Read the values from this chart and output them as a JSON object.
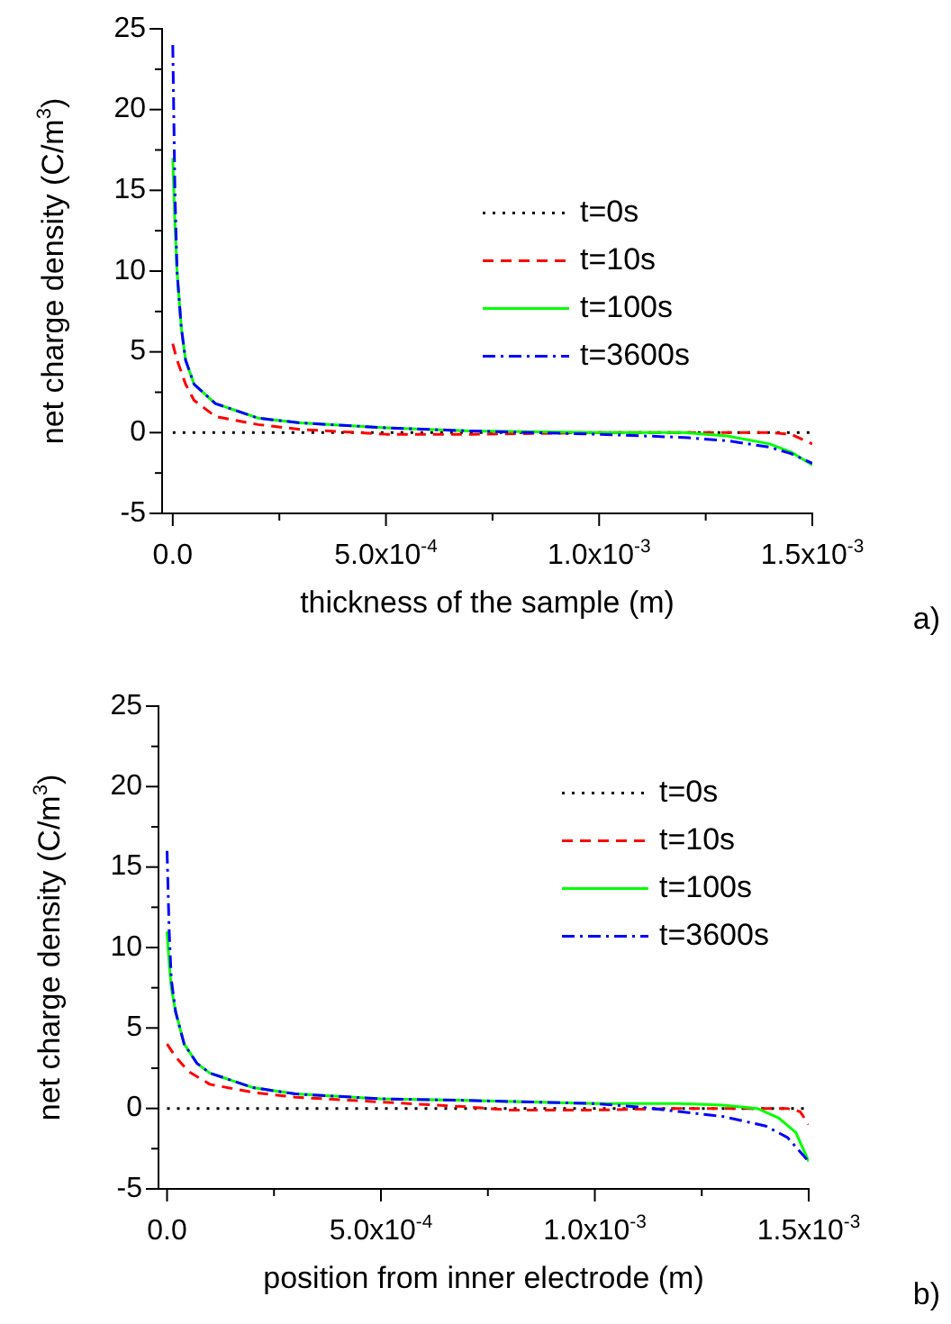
{
  "chart_data": [
    {
      "type": "line",
      "xlabel": "thickness of the sample (m)",
      "ylabel": "net charge density (C/m$^{3}$)",
      "annotations": [
        "a)"
      ],
      "xlim": [
        -2.5e-05,
        0.0015
      ],
      "ylim": [
        -5,
        25
      ],
      "xticks": [
        {
          "value": 0,
          "label": "0.0"
        },
        {
          "value": 0.00025,
          "label": null
        },
        {
          "value": 0.0005,
          "label": "5.0x10$^{-4}$"
        },
        {
          "value": 0.00075,
          "label": null
        },
        {
          "value": 0.001,
          "label": "1.0x10$^{-3}$"
        },
        {
          "value": 0.00125,
          "label": null
        },
        {
          "value": 0.0015,
          "label": "1.5x10$^{-3}$"
        }
      ],
      "yticks": [
        -5,
        {
          "value": -2.5,
          "label": null
        },
        0,
        {
          "value": 2.5,
          "label": null
        },
        5,
        {
          "value": 7.5,
          "label": null
        },
        10,
        {
          "value": 12.5,
          "label": null
        },
        15,
        {
          "value": 17.5,
          "label": null
        },
        20,
        {
          "value": 22.5,
          "label": null
        },
        25
      ],
      "grid": false,
      "legend": "right",
      "marker": "none",
      "series": [
        {
          "name": "t=0s",
          "color": "#000000",
          "line_style": "dotted",
          "x": [
            0,
            0.0015
          ],
          "values": [
            0,
            0
          ]
        },
        {
          "name": "t=10s",
          "color": "#ff0000",
          "line_style": "dashed",
          "x": [
            0,
            1e-05,
            3e-05,
            5e-05,
            0.0001,
            0.0002,
            0.0003,
            0.0005,
            0.0007,
            0.001,
            0.0014,
            0.00145,
            0.0015
          ],
          "values": [
            5.5,
            4.5,
            3,
            2,
            1,
            0.5,
            0.2,
            -0.1,
            -0.1,
            0,
            0,
            -0.1,
            -0.7
          ]
        },
        {
          "name": "t=100s",
          "color": "#00ff00",
          "line_style": "solid",
          "x": [
            0,
            5e-06,
            1e-05,
            2e-05,
            3e-05,
            5e-05,
            0.0001,
            0.0002,
            0.0003,
            0.0005,
            0.0007,
            0.001,
            0.0012,
            0.0013,
            0.0014,
            0.00145,
            0.0015
          ],
          "values": [
            17,
            13,
            10,
            6.5,
            4.5,
            3,
            1.8,
            0.9,
            0.6,
            0.3,
            0.1,
            0,
            0,
            -0.2,
            -0.7,
            -1.2,
            -2
          ]
        },
        {
          "name": "t=3600s",
          "color": "#0000ff",
          "line_style": "dashdot",
          "x": [
            0,
            5e-06,
            1e-05,
            2e-05,
            3e-05,
            5e-05,
            0.0001,
            0.0002,
            0.0003,
            0.0005,
            0.0007,
            0.001,
            0.0012,
            0.0013,
            0.0014,
            0.00145,
            0.0015
          ],
          "values": [
            24,
            15,
            10,
            6.5,
            4.5,
            3,
            1.8,
            0.9,
            0.6,
            0.3,
            0.1,
            -0.1,
            -0.3,
            -0.5,
            -0.9,
            -1.3,
            -1.9
          ]
        }
      ]
    },
    {
      "type": "line",
      "xlabel": "position from inner electrode (m)",
      "ylabel": "net charge density (C/m$^{3}$)",
      "annotations": [
        "b)"
      ],
      "xlim": [
        -2e-05,
        0.0015
      ],
      "ylim": [
        -5,
        25
      ],
      "xticks": [
        {
          "value": 0,
          "label": "0.0"
        },
        {
          "value": 0.00025,
          "label": null
        },
        {
          "value": 0.0005,
          "label": "5.0x10$^{-4}$"
        },
        {
          "value": 0.00075,
          "label": null
        },
        {
          "value": 0.001,
          "label": "1.0x10$^{-3}$"
        },
        {
          "value": 0.00125,
          "label": null
        },
        {
          "value": 0.0015,
          "label": "1.5x10$^{-3}$"
        }
      ],
      "yticks": [
        -5,
        {
          "value": -2.5,
          "label": null
        },
        0,
        {
          "value": 2.5,
          "label": null
        },
        5,
        {
          "value": 7.5,
          "label": null
        },
        10,
        {
          "value": 12.5,
          "label": null
        },
        15,
        {
          "value": 17.5,
          "label": null
        },
        20,
        {
          "value": 22.5,
          "label": null
        },
        25
      ],
      "grid": false,
      "legend": "top right",
      "marker": "none",
      "series": [
        {
          "name": "t=0s",
          "color": "#000000",
          "line_style": "dotted",
          "x": [
            0,
            0.0015
          ],
          "values": [
            0,
            0
          ]
        },
        {
          "name": "t=10s",
          "color": "#ff0000",
          "line_style": "dashed",
          "x": [
            0,
            2e-05,
            5e-05,
            0.0001,
            0.0002,
            0.0003,
            0.0005,
            0.0007,
            0.0008,
            0.001,
            0.0012,
            0.00145,
            0.00148,
            0.0015
          ],
          "values": [
            4,
            3.2,
            2.3,
            1.5,
            1,
            0.7,
            0.4,
            0.1,
            -0.1,
            -0.1,
            0,
            0,
            -0.2,
            -1
          ]
        },
        {
          "name": "t=100s",
          "color": "#00ff00",
          "line_style": "solid",
          "x": [
            0,
            5e-06,
            1e-05,
            2e-05,
            4e-05,
            7e-05,
            0.0001,
            0.0002,
            0.0003,
            0.0005,
            0.0007,
            0.001,
            0.0012,
            0.0013,
            0.00138,
            0.00143,
            0.00147,
            0.0015
          ],
          "values": [
            11,
            9,
            7.5,
            6,
            4,
            2.8,
            2.2,
            1.3,
            0.9,
            0.6,
            0.5,
            0.3,
            0.3,
            0.2,
            0,
            -0.6,
            -1.5,
            -3.3
          ]
        },
        {
          "name": "t=3600s",
          "color": "#0000ff",
          "line_style": "dashdot",
          "x": [
            0,
            5e-06,
            1e-05,
            2e-05,
            4e-05,
            7e-05,
            0.0001,
            0.0002,
            0.0003,
            0.0005,
            0.0007,
            0.001,
            0.0011,
            0.0012,
            0.0013,
            0.0014,
            0.00145,
            0.0015
          ],
          "values": [
            16,
            11,
            8,
            6,
            4,
            2.8,
            2.2,
            1.3,
            0.9,
            0.6,
            0.5,
            0.3,
            0.1,
            -0.2,
            -0.5,
            -1.1,
            -1.8,
            -3.3
          ]
        }
      ]
    }
  ]
}
